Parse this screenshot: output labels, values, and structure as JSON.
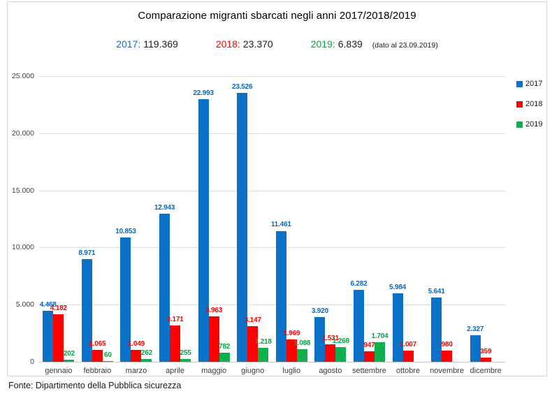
{
  "title": "Comparazione migranti sbarcati negli anni 2017/2018/2019",
  "summary": {
    "y2017_label": "2017:",
    "y2017_value": "119.369",
    "y2018_label": "2018:",
    "y2018_value": "23.370",
    "y2019_label": "2019:",
    "y2019_value": "6.839",
    "note": "(dato al 23.09.2019)"
  },
  "footer": "Fonte: Dipartimento della Pubblica sicurezza",
  "colors": {
    "blue_2017": "#0b72c7",
    "blue_label": "#0667c0",
    "red_2018": "#ff0000",
    "green_2019": "#0fae4e",
    "green_label": "#00a441",
    "gridline": "#dcdcdc"
  },
  "chart_data": {
    "type": "bar",
    "title": "Comparazione migranti sbarcati negli anni 2017/2018/2019",
    "categories": [
      "gennaio",
      "febbraio",
      "marzo",
      "aprile",
      "maggio",
      "giugno",
      "luglio",
      "agosto",
      "settembre",
      "ottobre",
      "novembre",
      "dicembre"
    ],
    "series": [
      {
        "name": "2017",
        "color": "#0b72c7",
        "label_color": "#0667c0",
        "values": [
          4468,
          8971,
          10853,
          12943,
          22993,
          23526,
          11461,
          3920,
          6282,
          5984,
          5641,
          2327
        ],
        "labels": [
          "4.468",
          "8.971",
          "10.853",
          "12.943",
          "22.993",
          "23.526",
          "11.461",
          "3.920",
          "6.282",
          "5.984",
          "5.641",
          "2.327"
        ]
      },
      {
        "name": "2018",
        "color": "#ff0000",
        "label_color": "#ff0000",
        "values": [
          4182,
          1065,
          1049,
          3171,
          3963,
          3147,
          1969,
          1531,
          947,
          1007,
          980,
          359
        ],
        "labels": [
          "4.182",
          "1.065",
          "1.049",
          "3.171",
          "3.963",
          "3.147",
          "1.969",
          "1.531",
          "947",
          "1.007",
          "980",
          "359"
        ]
      },
      {
        "name": "2019",
        "color": "#0fae4e",
        "label_color": "#00a441",
        "values": [
          202,
          60,
          262,
          255,
          782,
          1218,
          1088,
          1268,
          1704,
          null,
          null,
          null
        ],
        "labels": [
          "202",
          "60",
          "262",
          "255",
          "782",
          "1.218",
          "1.088",
          "1.268",
          "1.704",
          "",
          "",
          ""
        ]
      }
    ],
    "ylabel": "",
    "xlabel": "",
    "ylim": [
      0,
      25000
    ],
    "yticks": [
      {
        "value": 25000,
        "label": "25.000"
      },
      {
        "value": 20000,
        "label": "20.000"
      },
      {
        "value": 15000,
        "label": "15.000"
      },
      {
        "value": 10000,
        "label": "10.000"
      },
      {
        "value": 5000,
        "label": "5.000"
      },
      {
        "value": 0,
        "label": "0"
      }
    ],
    "grid": true,
    "legend_position": "right"
  }
}
